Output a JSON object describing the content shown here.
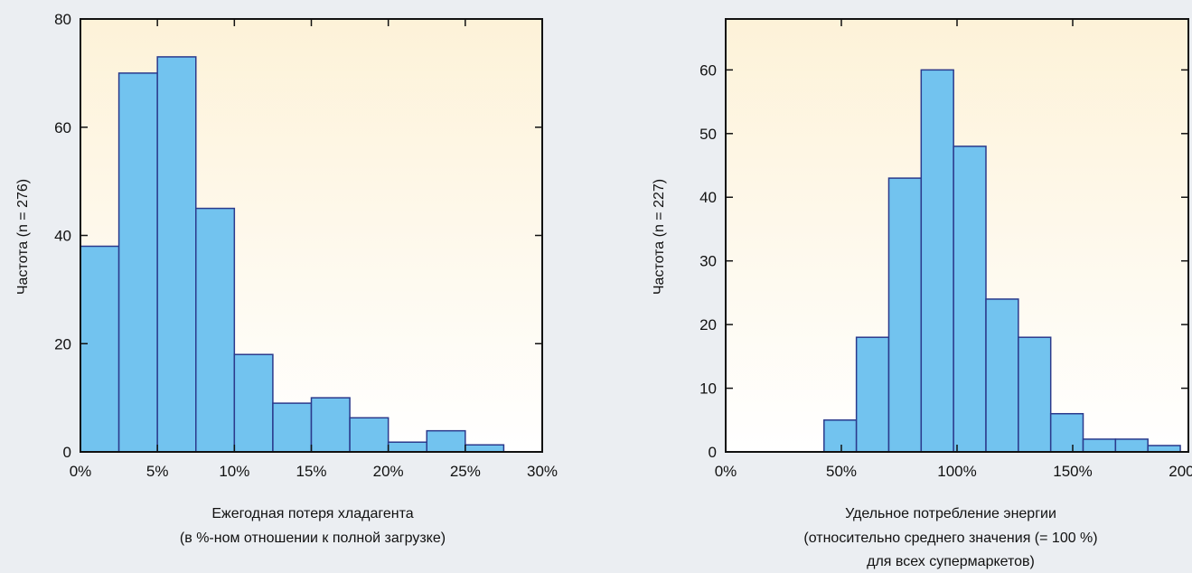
{
  "colors": {
    "background": "#ebeef2",
    "plot_top": "#fdf2d8",
    "plot_bottom": "#ffffff",
    "bar_fill": "#72c3ef",
    "bar_stroke": "#2b3a8c",
    "axis": "#111111"
  },
  "chart_data": [
    {
      "type": "bar",
      "title": "",
      "ylabel": "Частота (n = 276)",
      "xlabel_lines": [
        "Ежегодная потеря хладагента",
        "(в %-ном отношении к полной загрузке)"
      ],
      "xlim": [
        0,
        30
      ],
      "ylim": [
        0,
        80
      ],
      "x_ticks": [
        0,
        5,
        10,
        15,
        20,
        25,
        30
      ],
      "x_tick_labels": [
        "0%",
        "5%",
        "10%",
        "15%",
        "20%",
        "25%",
        "30%"
      ],
      "y_ticks": [
        0,
        20,
        40,
        60,
        80
      ],
      "y_tick_labels": [
        "0",
        "20",
        "40",
        "60",
        "80"
      ],
      "bin_edges": [
        0,
        2.5,
        5,
        7.5,
        10,
        12.5,
        15,
        17.5,
        20,
        22.5,
        25,
        27.5
      ],
      "values": [
        38,
        70,
        73,
        45,
        18,
        9,
        10,
        6.3,
        1.8,
        3.9,
        1.3
      ],
      "grid": false
    },
    {
      "type": "bar",
      "title": "",
      "ylabel": "Частота (n = 227)",
      "xlabel_lines": [
        "Удельное потребление энергии",
        "(относительно среднего значения (= 100 %)",
        "для всех супермаркетов)"
      ],
      "xlim": [
        0,
        200
      ],
      "ylim": [
        0,
        68
      ],
      "x_ticks": [
        0,
        50,
        100,
        150,
        200
      ],
      "x_tick_labels": [
        "0%",
        "50%",
        "100%",
        "150%",
        "200%"
      ],
      "y_ticks": [
        0,
        10,
        20,
        30,
        40,
        50,
        60
      ],
      "y_tick_labels": [
        "0",
        "10",
        "20",
        "30",
        "40",
        "50",
        "60"
      ],
      "bin_edges": [
        42.5,
        56.5,
        70.5,
        84.5,
        98.5,
        112.5,
        126.5,
        140.5,
        154.5,
        168.5,
        182.5,
        196.5
      ],
      "values": [
        5,
        18,
        43,
        60,
        48,
        24,
        18,
        6,
        2,
        2,
        1
      ],
      "grid": false
    }
  ]
}
